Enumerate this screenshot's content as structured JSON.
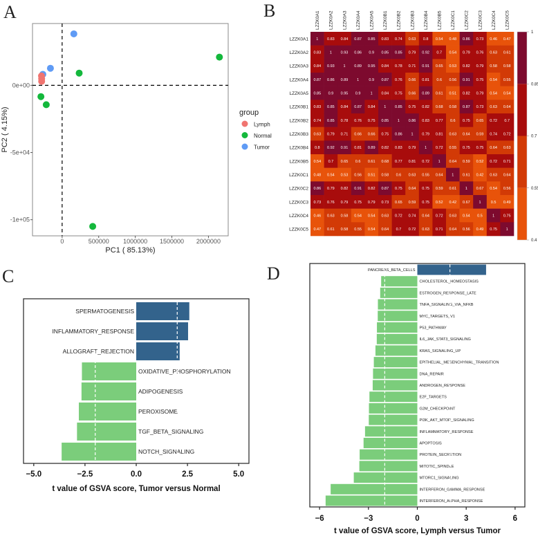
{
  "panels": {
    "a": "A",
    "b": "B",
    "c": "C",
    "d": "D"
  },
  "colors": {
    "Lymph": "#f07470",
    "Normal": "#14b83c",
    "Tumor": "#5f9bf5",
    "up_bar": "#33638c",
    "down_bar": "#7bcd7b",
    "heat_bins": [
      "#e8530a",
      "#d23a06",
      "#a80c0c",
      "#7d0a2e"
    ]
  },
  "chart_data": [
    {
      "type": "scatter",
      "title": "",
      "xlabel": "PC1 ( 85.13%)",
      "ylabel": "PC2 ( 4.15%)",
      "xlim": [
        -405000,
        2270000
      ],
      "ylim": [
        -112000,
        46000
      ],
      "xticks": [
        0,
        500000,
        1000000,
        1500000,
        2000000
      ],
      "xtick_labels": [
        "0",
        "500000",
        "1000000",
        "1500000",
        "2000000"
      ],
      "yticks": [
        0,
        -50000,
        -100000
      ],
      "ytick_labels": [
        "0e+00",
        "-5e+04",
        "-1e+05"
      ],
      "reference_lines": {
        "x": 0,
        "y": 0
      },
      "legend": {
        "title": "group",
        "position": "right",
        "entries": [
          "Lymph",
          "Normal",
          "Tumor"
        ]
      },
      "points": [
        {
          "group": "Tumor",
          "x": 160000,
          "y": 38300
        },
        {
          "group": "Tumor",
          "x": -160000,
          "y": 12700
        },
        {
          "group": "Tumor",
          "x": -264000,
          "y": 8200
        },
        {
          "group": "Lymph",
          "x": -282000,
          "y": 7000
        },
        {
          "group": "Lymph",
          "x": -280000,
          "y": 5000
        },
        {
          "group": "Lymph",
          "x": -280000,
          "y": 3000
        },
        {
          "group": "Normal",
          "x": 2150000,
          "y": 21000
        },
        {
          "group": "Normal",
          "x": 233000,
          "y": 9100
        },
        {
          "group": "Normal",
          "x": -290000,
          "y": -8400
        },
        {
          "group": "Normal",
          "x": -217000,
          "y": -14400
        },
        {
          "group": "Normal",
          "x": 418000,
          "y": -105000
        }
      ]
    },
    {
      "type": "heatmap",
      "labels": [
        "LZZK0A1",
        "LZZK0A2",
        "LZZK0A3",
        "LZZK0A4",
        "LZZK0A5",
        "LZZK0B1",
        "LZZK0B2",
        "LZZK0B3",
        "LZZK0B4",
        "LZZK0B5",
        "LZZK0C1",
        "LZZK0C2",
        "LZZK0C3",
        "LZZK0C4",
        "LZZK0C5"
      ],
      "legend": {
        "ticks": [
          "1",
          "0.85",
          "0.7",
          "0.55",
          "0.4"
        ],
        "range": [
          0.4,
          1
        ],
        "breaks": [
          0.55,
          0.7,
          0.85
        ]
      },
      "values": [
        [
          1,
          0.83,
          0.84,
          0.87,
          0.85,
          0.83,
          0.74,
          0.63,
          0.8,
          0.54,
          0.48,
          0.86,
          0.73,
          0.46,
          0.47
        ],
        [
          0.83,
          1,
          0.93,
          0.86,
          0.9,
          0.85,
          0.85,
          0.79,
          0.92,
          0.7,
          0.54,
          0.79,
          0.76,
          0.63,
          0.61
        ],
        [
          0.84,
          0.93,
          1,
          0.89,
          0.95,
          0.84,
          0.78,
          0.71,
          0.91,
          0.65,
          0.53,
          0.82,
          0.79,
          0.58,
          0.58
        ],
        [
          0.87,
          0.86,
          0.89,
          1,
          0.9,
          0.87,
          0.76,
          0.66,
          0.81,
          0.6,
          0.56,
          0.91,
          0.75,
          0.54,
          0.55
        ],
        [
          0.85,
          0.9,
          0.95,
          0.9,
          1,
          0.84,
          0.75,
          0.66,
          0.89,
          0.61,
          0.51,
          0.82,
          0.79,
          0.54,
          0.54
        ],
        [
          0.83,
          0.85,
          0.84,
          0.87,
          0.84,
          1,
          0.85,
          0.75,
          0.82,
          0.68,
          0.58,
          0.87,
          0.73,
          0.63,
          0.64
        ],
        [
          0.74,
          0.85,
          0.78,
          0.76,
          0.75,
          0.85,
          1,
          0.86,
          0.83,
          0.77,
          0.6,
          0.75,
          0.65,
          0.72,
          0.7
        ],
        [
          0.63,
          0.79,
          0.71,
          0.66,
          0.66,
          0.75,
          0.86,
          1,
          0.79,
          0.81,
          0.63,
          0.64,
          0.59,
          0.74,
          0.72
        ],
        [
          0.8,
          0.92,
          0.91,
          0.81,
          0.89,
          0.82,
          0.83,
          0.79,
          1,
          0.72,
          0.55,
          0.75,
          0.75,
          0.64,
          0.63
        ],
        [
          0.54,
          0.7,
          0.65,
          0.6,
          0.61,
          0.68,
          0.77,
          0.81,
          0.72,
          1,
          0.64,
          0.59,
          0.52,
          0.72,
          0.71
        ],
        [
          0.48,
          0.54,
          0.53,
          0.56,
          0.51,
          0.58,
          0.6,
          0.63,
          0.55,
          0.64,
          1,
          0.61,
          0.42,
          0.63,
          0.64
        ],
        [
          0.86,
          0.79,
          0.82,
          0.91,
          0.82,
          0.87,
          0.75,
          0.64,
          0.75,
          0.59,
          0.61,
          1,
          0.67,
          0.54,
          0.56
        ],
        [
          0.73,
          0.76,
          0.79,
          0.75,
          0.79,
          0.73,
          0.65,
          0.59,
          0.75,
          0.52,
          0.42,
          0.67,
          1,
          0.5,
          0.49
        ],
        [
          0.46,
          0.63,
          0.58,
          0.54,
          0.54,
          0.63,
          0.72,
          0.74,
          0.64,
          0.72,
          0.63,
          0.54,
          0.5,
          1,
          0.75
        ],
        [
          0.47,
          0.61,
          0.58,
          0.55,
          0.54,
          0.64,
          0.7,
          0.72,
          0.63,
          0.71,
          0.64,
          0.56,
          0.49,
          0.75,
          1
        ]
      ]
    },
    {
      "type": "bar",
      "orientation": "horizontal",
      "xlabel": "t value of GSVA score, Tumor versus Normal",
      "xlim": [
        -5.5,
        5.5
      ],
      "xticks": [
        -5,
        -2.5,
        0,
        2.5,
        5
      ],
      "xtick_labels": [
        "−5.0",
        "−2.5",
        "0.0",
        "2.5",
        "5.0"
      ],
      "threshold_lines": [
        -2,
        2
      ],
      "categories": [
        "SPERMATOGENESIS",
        "INFLAMMATORY_RESPONSE",
        "ALLOGRAFT_REJECTION",
        "OXIDATIVE_PHOSPHORYLATION",
        "ADIPOGENESIS",
        "PEROXISOME",
        "TGF_BETA_SIGNALING",
        "NOTCH_SIGNALING"
      ],
      "values": [
        2.59,
        2.53,
        2.12,
        -2.65,
        -2.67,
        -2.8,
        -2.89,
        -3.64
      ]
    },
    {
      "type": "bar",
      "orientation": "horizontal",
      "xlabel": "t value of GSVA score, Lymph versus Tumor",
      "xlim": [
        -6.6,
        6.6
      ],
      "xticks": [
        -6,
        -3,
        0,
        3,
        6
      ],
      "xtick_labels": [
        "−6",
        "−3",
        "0",
        "3",
        "6"
      ],
      "threshold_lines": [
        -2,
        2
      ],
      "categories": [
        "PANCREAS_BETA_CELLS",
        "CHOLESTEROL_HOMEOSTASIS",
        "ESTROGEN_RESPONSE_LATE",
        "TNFA_SIGNALING_VIA_NFKB",
        "MYC_TARGETS_V1",
        "P53_PATHWAY",
        "IL6_JAK_STAT3_SIGNALING",
        "KRAS_SIGNALING_UP",
        "EPITHELIAL_MESENCHYMAL_TRANSITION",
        "DNA_REPAIR",
        "ANDROGEN_RESPONSE",
        "E2F_TARGETS",
        "G2M_CHECKPOINT",
        "PI3K_AKT_MTOR_SIGNALING",
        "INFLAMMATORY_RESPONSE",
        "APOPTOSIS",
        "PROTEIN_SECRETION",
        "MITOTIC_SPINDLE",
        "MTORC1_SIGNALING",
        "INTERFERON_GAMMA_RESPONSE",
        "INTERFERON_ALPHA_RESPONSE"
      ],
      "values": [
        4.22,
        -2.22,
        -2.28,
        -2.42,
        -2.43,
        -2.48,
        -2.49,
        -2.57,
        -2.67,
        -2.72,
        -2.74,
        -2.94,
        -2.97,
        -2.98,
        -3.21,
        -3.3,
        -3.54,
        -3.56,
        -3.9,
        -5.32,
        -5.63
      ]
    }
  ]
}
